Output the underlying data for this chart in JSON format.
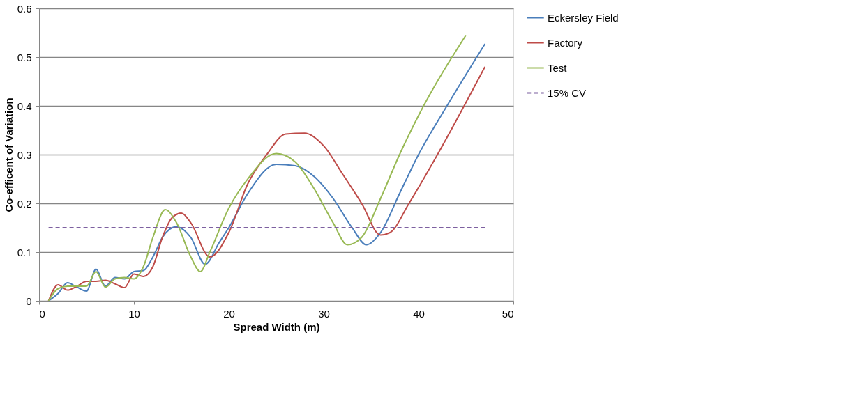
{
  "chart_data": {
    "type": "line",
    "xlabel": "Spread Width (m)",
    "ylabel": "Co-efficent of Variation",
    "xlim": [
      0,
      50
    ],
    "xticks": [
      0,
      10,
      20,
      30,
      40,
      50
    ],
    "ylim": [
      0,
      0.6
    ],
    "yticks": [
      0,
      0.1,
      0.2,
      0.3,
      0.4,
      0.5,
      0.6
    ],
    "grid": "y",
    "legend": "right",
    "marker": "none",
    "series": [
      {
        "name": "Eckersley Field",
        "color": "#4a7ebb",
        "x": [
          1,
          2,
          3,
          4,
          5,
          6,
          7,
          8,
          9,
          10,
          11,
          12,
          13,
          14.5,
          16,
          17.5,
          19,
          20,
          22,
          25,
          27,
          29,
          31,
          33,
          34.5,
          36,
          38,
          40,
          43,
          47
        ],
        "values": [
          0,
          0.015,
          0.037,
          0.028,
          0.02,
          0.065,
          0.03,
          0.048,
          0.045,
          0.06,
          0.062,
          0.09,
          0.13,
          0.152,
          0.13,
          0.075,
          0.12,
          0.15,
          0.22,
          0.28,
          0.277,
          0.255,
          0.21,
          0.15,
          0.115,
          0.14,
          0.22,
          0.3,
          0.4,
          0.527
        ]
      },
      {
        "name": "Factory",
        "color": "#be4b48",
        "x": [
          1,
          2,
          3,
          4,
          5,
          6,
          7,
          8,
          9,
          10,
          11,
          12,
          13,
          14,
          15,
          16,
          18,
          20,
          22,
          24,
          26,
          28,
          30,
          32,
          34,
          36,
          37,
          39,
          42,
          47
        ],
        "values": [
          0,
          0.033,
          0.022,
          0.03,
          0.04,
          0.04,
          0.042,
          0.035,
          0.027,
          0.055,
          0.05,
          0.07,
          0.13,
          0.17,
          0.18,
          0.16,
          0.09,
          0.14,
          0.24,
          0.3,
          0.342,
          0.344,
          0.318,
          0.26,
          0.2,
          0.135,
          0.14,
          0.2,
          0.3,
          0.48
        ]
      },
      {
        "name": "Test",
        "color": "#98b954",
        "x": [
          1,
          2,
          3,
          4,
          5,
          6,
          7,
          8,
          9,
          10,
          11,
          12,
          13.3,
          14.5,
          16,
          17,
          18,
          20,
          22,
          25,
          27,
          29,
          31,
          32.5,
          34,
          36,
          38,
          40,
          45
        ],
        "values": [
          0,
          0.025,
          0.03,
          0.03,
          0.03,
          0.06,
          0.028,
          0.045,
          0.048,
          0.045,
          0.07,
          0.13,
          0.187,
          0.16,
          0.09,
          0.06,
          0.1,
          0.19,
          0.25,
          0.302,
          0.285,
          0.23,
          0.16,
          0.115,
          0.13,
          0.21,
          0.3,
          0.38,
          0.545
        ]
      },
      {
        "name": "15% CV",
        "color": "#7d60a0",
        "line_style": "dashed",
        "x": [
          1,
          47
        ],
        "values": [
          0.15,
          0.15
        ]
      }
    ]
  }
}
